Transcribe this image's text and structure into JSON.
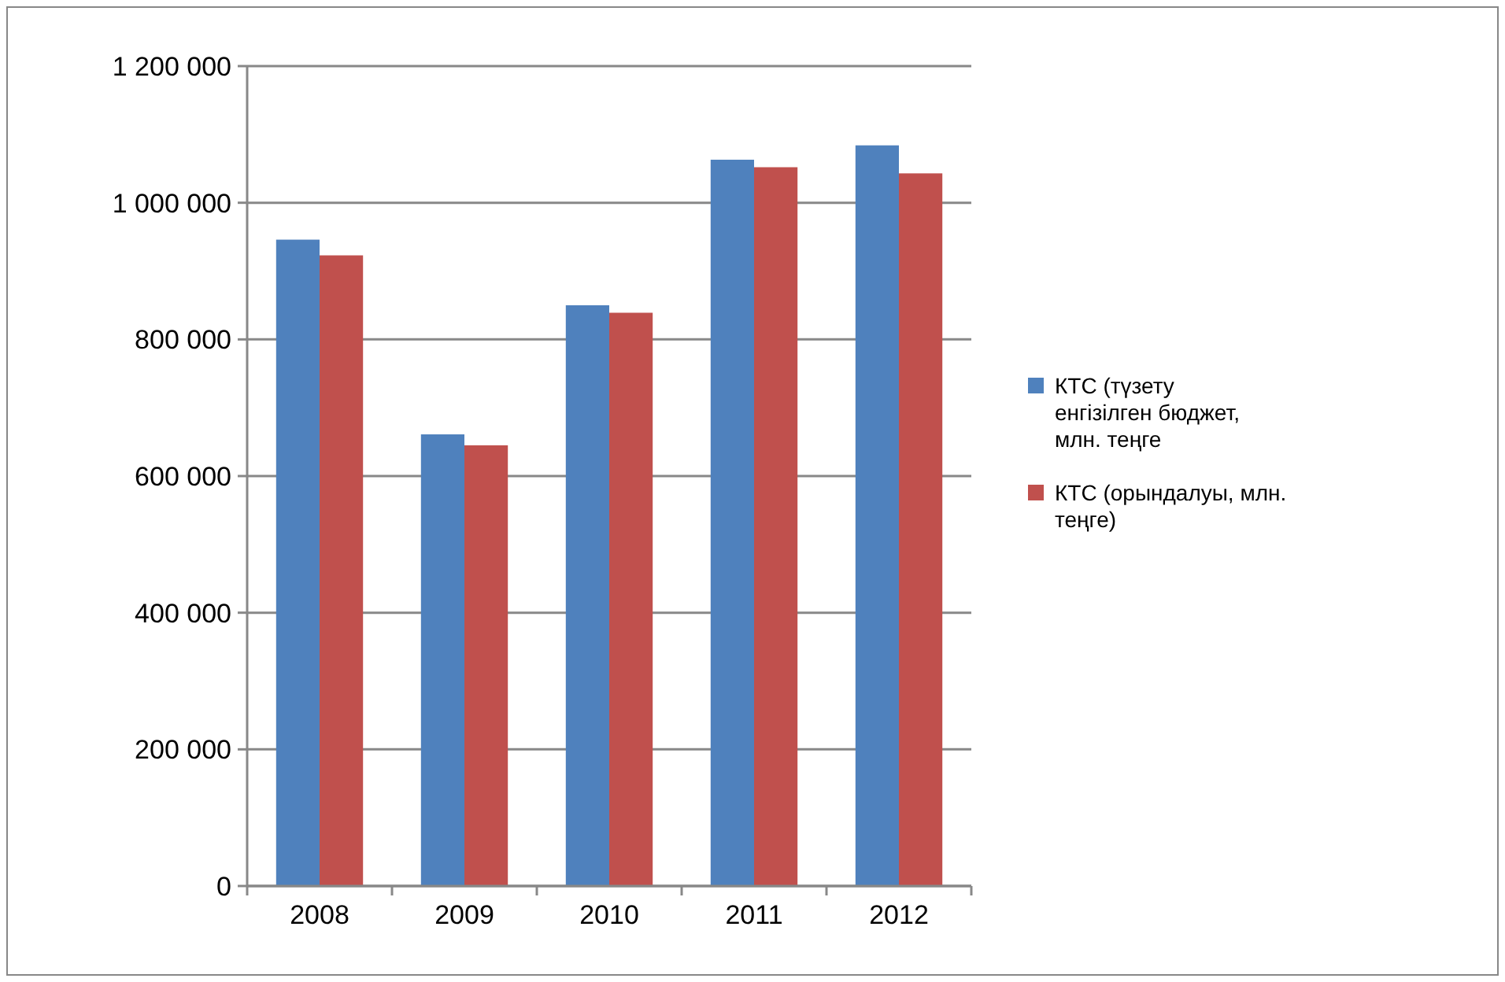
{
  "chart_data": {
    "type": "bar",
    "categories": [
      "2008",
      "2009",
      "2010",
      "2011",
      "2012"
    ],
    "series": [
      {
        "name": "КТС (түзету енгізілген бюджет, млн. теңге",
        "color": "#4f81bd",
        "values": [
          946000,
          661000,
          850000,
          1063000,
          1084000
        ]
      },
      {
        "name": "КТС (орындалуы, млн. теңге)",
        "color": "#c0504d",
        "values": [
          923000,
          645000,
          839000,
          1052000,
          1043000
        ]
      }
    ],
    "ylim": [
      0,
      1200000
    ],
    "yticks": [
      0,
      {
        "value": 200000,
        "label": "200 000"
      },
      {
        "value": 400000,
        "label": "400 000"
      },
      {
        "value": 600000,
        "label": "600 000"
      },
      {
        "value": 800000,
        "label": "800 000"
      },
      {
        "value": 1000000,
        "label": "1 000 000"
      },
      {
        "value": 1200000,
        "label": "1 200 000"
      }
    ],
    "grid": "y",
    "legend": "right"
  }
}
